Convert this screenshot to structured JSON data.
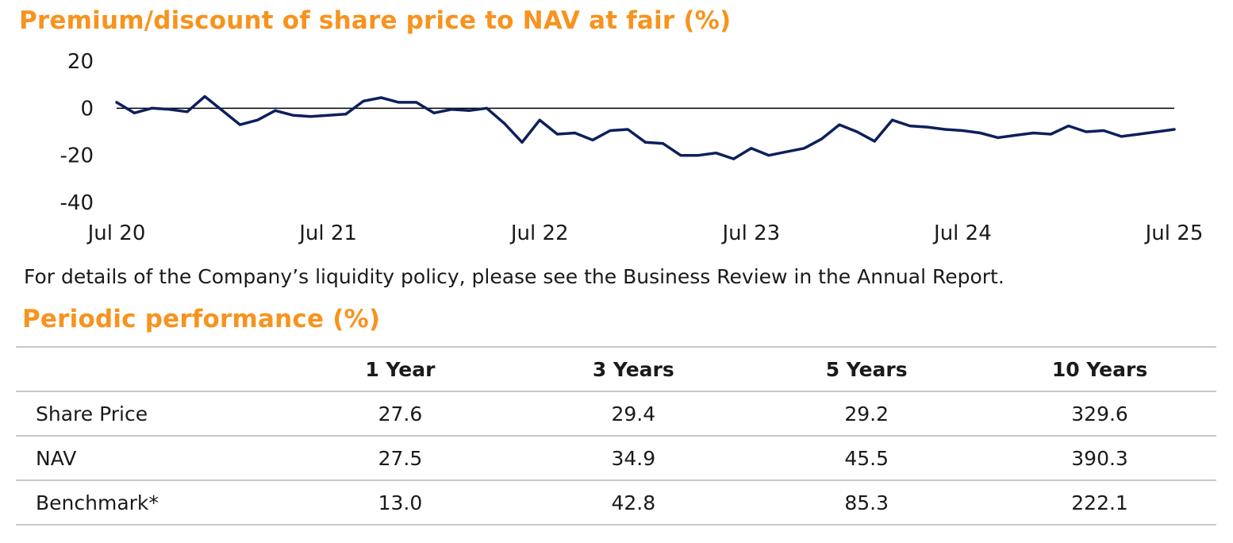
{
  "chart_title": "Premium/discount of share price to NAV at fair (%)",
  "note": "For details of the Company’s liquidity policy, please see the Business Review in the Annual Report.",
  "table_title": "Periodic performance (%)",
  "colors": {
    "accent": "#f7931e",
    "line": "#0d1f5c",
    "rule": "#c8c8c8"
  },
  "chart_data": {
    "type": "line",
    "title": "Premium/discount of share price to NAV at fair (%)",
    "xlabel": "",
    "ylabel": "",
    "ylim": [
      -40,
      20
    ],
    "yticks": [
      "20",
      "0",
      "-20",
      "-40"
    ],
    "ytick_values": [
      20,
      0,
      -20,
      -40
    ],
    "xticks": [
      "Jul 20",
      "Jul 21",
      "Jul 22",
      "Jul 23",
      "Jul 24",
      "Jul 25"
    ],
    "grid": false,
    "zero_line": true,
    "series": [
      {
        "values": [
          2.5,
          -2,
          0,
          -0.5,
          -1.5,
          5,
          -1,
          -7,
          -5,
          -1,
          -3,
          -3.5,
          -3,
          -2.5,
          3,
          4.5,
          2.5,
          2.5,
          -2,
          -0.5,
          -1,
          0,
          -6.5,
          -14.5,
          -5,
          -11,
          -10.5,
          -13.5,
          -9.5,
          -9,
          -14.5,
          -15,
          -20,
          -20,
          -19,
          -21.5,
          -17,
          -20,
          -18.5,
          -17,
          -13,
          -7,
          -10,
          -14,
          -5,
          -7.5,
          -8,
          -9,
          -9.5,
          -10.5,
          -12.5,
          -11.5,
          -10.5,
          -11,
          -7.5,
          -10,
          -9.5,
          -12,
          -11,
          -10,
          -9
        ]
      }
    ]
  },
  "table": {
    "columns": [
      "",
      "1 Year",
      "3 Years",
      "5 Years",
      "10 Years"
    ],
    "rows": [
      {
        "label": "Share Price",
        "values": [
          "27.6",
          "29.4",
          "29.2",
          "329.6"
        ]
      },
      {
        "label": "NAV",
        "values": [
          "27.5",
          "34.9",
          "45.5",
          "390.3"
        ]
      },
      {
        "label": "Benchmark*",
        "values": [
          "13.0",
          "42.8",
          "85.3",
          "222.1"
        ]
      }
    ]
  }
}
